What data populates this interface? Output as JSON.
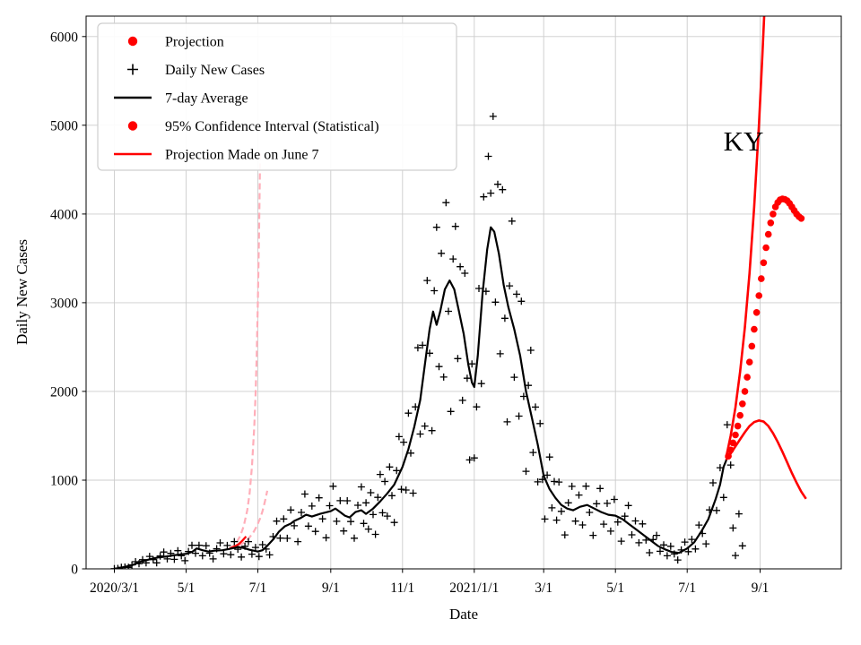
{
  "chart_data": {
    "type": "line",
    "title": "",
    "xlabel": "Date",
    "ylabel": "Daily New Cases",
    "annotation": {
      "text": "KY",
      "day": 535,
      "value": 4820
    },
    "x_unit": "days since 2020/3/1",
    "xlim": [
      -24,
      618
    ],
    "ylim": [
      0,
      6230
    ],
    "grid": true,
    "x_ticks": [
      {
        "day": 0,
        "label": "2020/3/1"
      },
      {
        "day": 61,
        "label": "5/1"
      },
      {
        "day": 122,
        "label": "7/1"
      },
      {
        "day": 184,
        "label": "9/1"
      },
      {
        "day": 245,
        "label": "11/1"
      },
      {
        "day": 306,
        "label": "2021/1/1"
      },
      {
        "day": 365,
        "label": "3/1"
      },
      {
        "day": 426,
        "label": "5/1"
      },
      {
        "day": 487,
        "label": "7/1"
      },
      {
        "day": 549,
        "label": "9/1"
      }
    ],
    "y_ticks": [
      0,
      1000,
      2000,
      3000,
      4000,
      5000,
      6000
    ],
    "colors": {
      "red": "#ff0000",
      "black": "#000000",
      "pink_ci": "#ffaeb9",
      "grid": "#cccccc",
      "spine": "#000000",
      "legend_border": "#cfcfcf"
    },
    "legend": {
      "position": "upper-left",
      "entries": [
        {
          "marker": "dot",
          "color": "red",
          "label": "Projection"
        },
        {
          "marker": "plus",
          "color": "black",
          "label": "Daily New Cases"
        },
        {
          "marker": "line",
          "color": "black",
          "label": "7-day Average"
        },
        {
          "marker": "dot",
          "color": "red",
          "label": "95% Confidence Interval (Statistical)"
        },
        {
          "marker": "line",
          "color": "red",
          "label": "Projection Made on June 7"
        }
      ]
    },
    "series": {
      "ci_upper_dashed": {
        "x": [
          98,
          101,
          104,
          107,
          110,
          113,
          115,
          117,
          119,
          120,
          121,
          122,
          123,
          124
        ],
        "y": [
          230,
          255,
          300,
          370,
          480,
          660,
          850,
          1150,
          1600,
          1950,
          2400,
          3000,
          3750,
          4700
        ]
      },
      "ci_lower_dashed": {
        "x": [
          98,
          102,
          106,
          110,
          114,
          118,
          121,
          124,
          126,
          128,
          130
        ],
        "y": [
          225,
          240,
          262,
          295,
          340,
          405,
          480,
          570,
          650,
          760,
          880
        ]
      },
      "projection_june7_line": {
        "x": [
          98,
          102,
          106,
          109,
          112
        ],
        "y": [
          228,
          250,
          282,
          320,
          365
        ]
      },
      "seven_day_average": {
        "x": [
          0,
          5,
          10,
          15,
          20,
          25,
          31,
          38,
          45,
          52,
          61,
          66,
          70,
          75,
          80,
          85,
          92,
          98,
          105,
          110,
          115,
          122,
          126,
          130,
          135,
          140,
          145,
          150,
          153,
          158,
          163,
          168,
          175,
          184,
          188,
          192,
          196,
          200,
          205,
          210,
          214,
          220,
          226,
          232,
          238,
          245,
          250,
          255,
          260,
          264,
          268,
          271,
          274,
          277,
          281,
          285,
          289,
          293,
          297,
          301,
          304,
          306,
          309,
          313,
          317,
          320,
          323,
          327,
          331,
          335,
          340,
          345,
          350,
          355,
          360,
          365,
          370,
          375,
          380,
          385,
          390,
          396,
          402,
          408,
          414,
          420,
          426,
          432,
          438,
          444,
          450,
          456,
          462,
          468,
          474,
          480,
          487,
          493,
          499,
          505,
          511,
          515,
          518,
          521
        ],
        "y": [
          2,
          10,
          25,
          40,
          70,
          90,
          110,
          130,
          140,
          155,
          170,
          190,
          230,
          210,
          195,
          205,
          210,
          225,
          245,
          235,
          215,
          195,
          210,
          260,
          330,
          420,
          480,
          510,
          540,
          570,
          610,
          590,
          620,
          650,
          680,
          640,
          600,
          580,
          640,
          660,
          620,
          680,
          760,
          850,
          950,
          1150,
          1350,
          1600,
          1900,
          2300,
          2700,
          2900,
          2750,
          2900,
          3150,
          3250,
          3150,
          2900,
          2650,
          2300,
          2100,
          2050,
          2400,
          3100,
          3600,
          3850,
          3800,
          3550,
          3200,
          2950,
          2700,
          2400,
          2000,
          1700,
          1400,
          1050,
          900,
          800,
          720,
          680,
          660,
          700,
          720,
          680,
          640,
          610,
          600,
          560,
          500,
          440,
          380,
          320,
          260,
          220,
          190,
          180,
          230,
          300,
          420,
          560,
          780,
          950,
          1150,
          1250
        ]
      },
      "daily_new_cases": {
        "x": [
          0,
          3,
          6,
          9,
          12,
          15,
          18,
          21,
          24,
          27,
          30,
          33,
          36,
          39,
          42,
          45,
          48,
          51,
          54,
          57,
          60,
          63,
          66,
          69,
          72,
          75,
          78,
          81,
          84,
          87,
          90,
          93,
          96,
          99,
          102,
          105,
          108,
          111,
          114,
          117,
          120,
          123,
          126,
          129,
          132,
          135,
          138,
          141,
          144,
          147,
          150,
          153,
          156,
          159,
          162,
          165,
          168,
          171,
          174,
          177,
          180,
          183,
          186,
          189,
          192,
          195,
          198,
          201,
          204,
          207,
          210,
          212,
          214,
          216,
          218,
          220,
          222,
          224,
          226,
          228,
          230,
          232,
          234,
          236,
          238,
          240,
          242,
          244,
          246,
          248,
          250,
          252,
          254,
          256,
          258,
          260,
          262,
          264,
          266,
          268,
          270,
          272,
          274,
          276,
          278,
          280,
          282,
          284,
          286,
          288,
          290,
          292,
          294,
          296,
          298,
          300,
          302,
          304,
          306,
          308,
          310,
          312,
          314,
          316,
          318,
          320,
          322,
          324,
          326,
          328,
          330,
          332,
          334,
          336,
          338,
          340,
          342,
          344,
          346,
          348,
          350,
          352,
          354,
          356,
          358,
          360,
          362,
          364,
          366,
          368,
          370,
          372,
          374,
          376,
          378,
          380,
          383,
          386,
          389,
          392,
          395,
          398,
          401,
          404,
          407,
          410,
          413,
          416,
          419,
          422,
          425,
          428,
          431,
          434,
          437,
          440,
          443,
          446,
          449,
          452,
          455,
          458,
          461,
          464,
          467,
          470,
          473,
          476,
          479,
          482,
          485,
          488,
          491,
          494,
          497,
          500,
          503,
          506,
          509,
          512,
          515,
          518,
          521,
          524,
          526,
          528,
          531,
          534
        ],
        "y": [
          2,
          5,
          17,
          20,
          17,
          44,
          81,
          59,
          103,
          68,
          140,
          104,
          68,
          144,
          190,
          112,
          175,
          107,
          205,
          147,
          92,
          196,
          266,
          176,
          266,
          147,
          261,
          177,
          112,
          227,
          293,
          170,
          264,
          160,
          307,
          221,
          133,
          254,
          307,
          166,
          241,
          139,
          273,
          223,
          158,
          363,
          538,
          346,
          562,
          344,
          663,
          486,
          307,
          636,
          843,
          482,
          708,
          422,
          801,
          563,
          350,
          712,
          931,
          536,
          768,
          427,
          767,
          533,
          345,
          717,
          924,
          512,
          744,
          448,
          858,
          612,
          389,
          806,
          1064,
          632,
          984,
          595,
          1148,
          825,
          523,
          1108,
          1490,
          897,
          1428,
          889,
          1755,
          1305,
          853,
          1826,
          2492,
          1520,
          2520,
          1610,
          3250,
          2430,
          1558,
          3135,
          3850,
          2280,
          3556,
          2162,
          4128,
          2903,
          1774,
          3493,
          3860,
          2370,
          3406,
          1899,
          3332,
          2149,
          1228,
          2310,
          1250,
          1826,
          3160,
          2088,
          4193,
          3128,
          4650,
          4235,
          5100,
          3006,
          4335,
          2424,
          4274,
          2824,
          1657,
          3190,
          3920,
          2160,
          3096,
          1722,
          3016,
          1944,
          1100,
          2068,
          2464,
          1312,
          1824,
          980,
          1638,
          1008,
          561,
          1056,
          1260,
          688,
          984,
          549,
          978,
          648,
          383,
          744,
          930,
          538,
          832,
          495,
          932,
          636,
          378,
          734,
          906,
          504,
          738,
          425,
          783,
          528,
          312,
          594,
          714,
          384,
          540,
          294,
          507,
          324,
          182,
          330,
          378,
          198,
          270,
          147,
          254,
          168,
          100,
          213,
          302,
          194,
          332,
          224,
          494,
          399,
          282,
          664,
          969,
          658,
          1140,
          805,
          1625,
          1170,
          460,
          150,
          620,
          260
        ]
      },
      "projection_upper_line": {
        "x": [
          520,
          524,
          528,
          532,
          536,
          540,
          544,
          548,
          551,
          553
        ],
        "y": [
          1250,
          1500,
          1820,
          2220,
          2720,
          3330,
          4080,
          5000,
          5800,
          6400
        ]
      },
      "projection_trend_line": {
        "x": [
          520,
          524,
          528,
          532,
          536,
          540,
          544,
          548,
          552,
          556,
          560,
          564,
          568,
          572,
          576,
          580,
          584,
          588
        ],
        "y": [
          1230,
          1300,
          1380,
          1460,
          1540,
          1610,
          1655,
          1672,
          1660,
          1610,
          1530,
          1430,
          1320,
          1200,
          1080,
          970,
          870,
          790
        ]
      },
      "projection_dots": {
        "x": [
          522,
          524,
          526,
          528,
          530,
          532,
          534,
          536,
          538,
          540,
          542,
          544,
          546,
          548,
          550,
          552,
          554,
          556,
          558,
          560,
          562,
          564,
          566,
          568,
          570,
          572,
          574,
          576,
          578,
          580,
          582,
          584
        ],
        "y": [
          1270,
          1340,
          1420,
          1510,
          1610,
          1730,
          1860,
          2000,
          2160,
          2330,
          2510,
          2700,
          2890,
          3080,
          3270,
          3450,
          3620,
          3770,
          3900,
          4000,
          4080,
          4130,
          4160,
          4170,
          4165,
          4150,
          4120,
          4080,
          4040,
          4000,
          3970,
          3950
        ]
      }
    }
  }
}
